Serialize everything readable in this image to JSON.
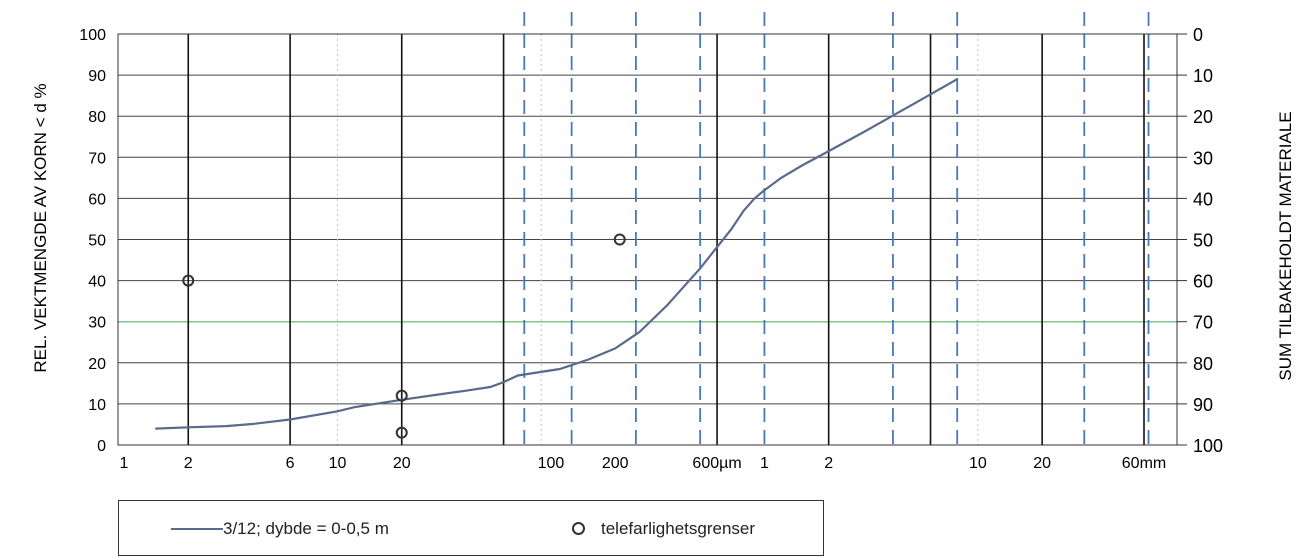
{
  "chart_data": {
    "type": "line",
    "ylabel_left": "REL. VEKTMENGDE AV KORN < d %",
    "ylabel_right": "SUM TILBAKEHOLDT MATERIALE",
    "ylim": [
      0,
      100
    ],
    "y_ticks_left": [
      "0",
      "10",
      "20",
      "30",
      "40",
      "50",
      "60",
      "70",
      "80",
      "90",
      "100"
    ],
    "y_ticks_right": [
      "100",
      "90",
      "80",
      "70",
      "60",
      "50",
      "40",
      "30",
      "20",
      "10",
      "0"
    ],
    "x_scale": "log",
    "x_unit_note": "x axis in µm up to 600µm, then mm",
    "x_tick_labels": [
      {
        "label": "1",
        "um": 1
      },
      {
        "label": "2",
        "um": 2
      },
      {
        "label": "6",
        "um": 6
      },
      {
        "label": "10",
        "um": 10
      },
      {
        "label": "20",
        "um": 20
      },
      {
        "label": "100",
        "um": 100
      },
      {
        "label": "200",
        "um": 200
      },
      {
        "label": "600µm",
        "um": 600
      },
      {
        "label": "1",
        "um": 1000
      },
      {
        "label": "2",
        "um": 2000
      },
      {
        "label": "10",
        "um": 10000
      },
      {
        "label": "20",
        "um": 20000
      },
      {
        "label": "60mm",
        "um": 60000
      }
    ],
    "series": [
      {
        "name": "3/12; dybde = 0-0,5 m",
        "color": "#5a6a8c",
        "x_um": [
          1.4,
          2,
          3,
          4,
          6,
          10,
          12,
          20,
          30,
          40,
          52,
          60,
          70,
          110,
          150,
          200,
          260,
          350,
          500,
          700,
          800,
          900,
          1000,
          1200,
          1500,
          2000,
          3000,
          5000,
          8000
        ],
        "y": [
          4,
          4.3,
          4.6,
          5.1,
          6.2,
          8.2,
          9.2,
          11,
          12.3,
          13.2,
          14.1,
          15.3,
          16.9,
          18.5,
          20.8,
          23.5,
          27.5,
          34,
          43,
          52.5,
          57,
          60,
          62,
          65,
          68,
          71.5,
          76.5,
          83,
          89
        ]
      }
    ],
    "markers": {
      "name": "telefarlighetsgrenser",
      "points": [
        {
          "x_um": 2,
          "y": 40
        },
        {
          "x_um": 20,
          "y": 12
        },
        {
          "x_um": 20,
          "y": 3
        },
        {
          "x_um": 210,
          "y": 50
        }
      ]
    },
    "reference_lines": {
      "solid_black_um": [
        2,
        6,
        20,
        60,
        600,
        2000,
        6000,
        20000,
        60000
      ],
      "dashed_blue_um": [
        75,
        125,
        250,
        500,
        1000,
        4000,
        8000,
        31500,
        63000
      ],
      "dotted_grey_um": [
        10,
        90,
        10000
      ],
      "green_y": 30
    },
    "legend": {
      "position": "bottom-left",
      "entries": [
        "3/12; dybde = 0-0,5 m",
        "telefarlighetsgrenser"
      ]
    },
    "grid": true
  }
}
